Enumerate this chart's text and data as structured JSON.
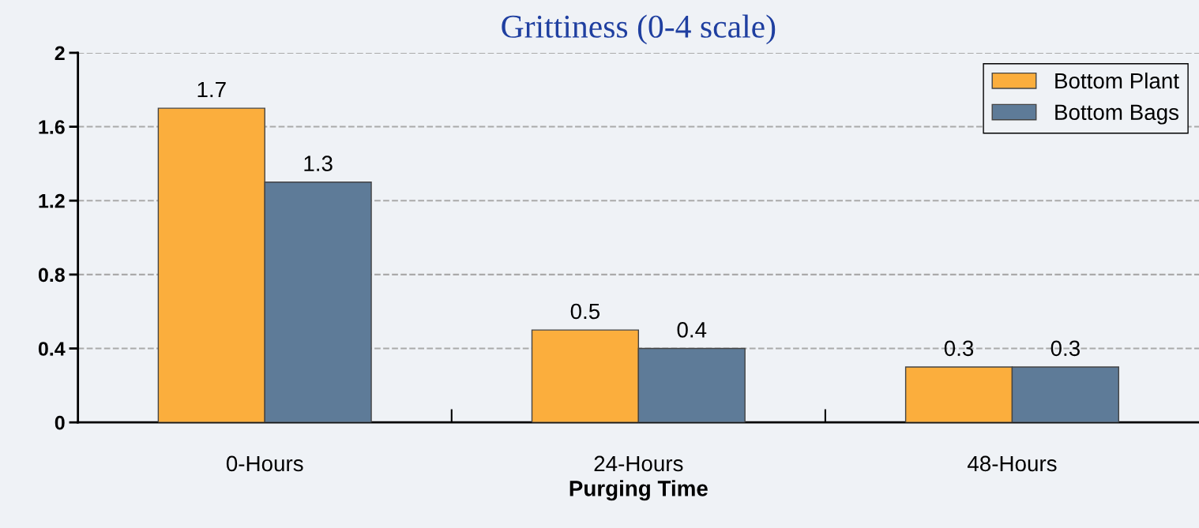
{
  "chart_data": {
    "type": "bar",
    "title": "Grittiness (0-4 scale)",
    "xlabel": "Purging Time",
    "categories": [
      "0-Hours",
      "24-Hours",
      "48-Hours"
    ],
    "series": [
      {
        "name": "Bottom Plant",
        "color": "#fbae3d",
        "values": [
          1.7,
          0.5,
          0.3
        ]
      },
      {
        "name": "Bottom Bags",
        "color": "#5e7b98",
        "values": [
          1.3,
          0.4,
          0.3
        ]
      }
    ],
    "ylim": [
      0,
      2
    ],
    "yticks": [
      0,
      0.4,
      0.8,
      1.2,
      1.6,
      2
    ],
    "grid": "y",
    "legend": "top right",
    "data_labels": true
  }
}
